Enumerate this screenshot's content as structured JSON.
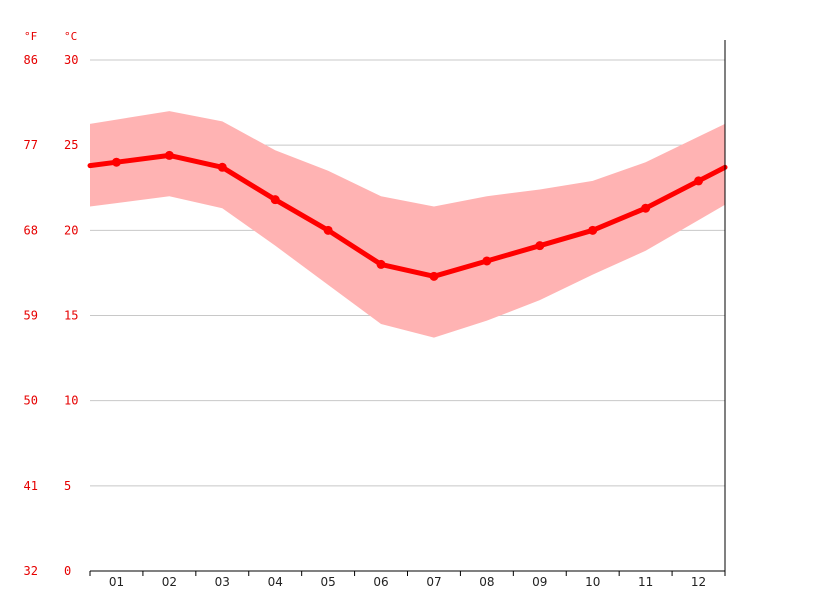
{
  "chart_data": {
    "type": "line",
    "units": {
      "left": "°F",
      "right": "°C"
    },
    "categories": [
      "01",
      "02",
      "03",
      "04",
      "05",
      "06",
      "07",
      "08",
      "09",
      "10",
      "11",
      "12"
    ],
    "ylim": [
      0,
      30
    ],
    "yticks_c": [
      "30",
      "25",
      "20",
      "15",
      "10",
      "5",
      "0"
    ],
    "yticks_f": [
      "86",
      "77",
      "68",
      "59",
      "50",
      "41",
      "32"
    ],
    "grid": true,
    "series": [
      {
        "values": [
          24.0,
          24.4,
          23.7,
          21.8,
          20.0,
          18.0,
          17.3,
          18.2,
          19.1,
          20.0,
          21.3,
          22.9
        ]
      }
    ],
    "band": {
      "upper": [
        26.5,
        27.0,
        26.4,
        24.7,
        23.5,
        22.0,
        21.4,
        22.0,
        22.4,
        22.9,
        24.0,
        25.5
      ],
      "lower": [
        21.6,
        22.0,
        21.3,
        19.1,
        16.8,
        14.5,
        13.7,
        14.7,
        15.9,
        17.4,
        18.8,
        20.6
      ]
    },
    "colors": {
      "line": "#ff0000",
      "band": "#ffb3b3",
      "tick_text": "#e60000",
      "grid": "#c8c8c8",
      "axis": "#000000"
    }
  }
}
